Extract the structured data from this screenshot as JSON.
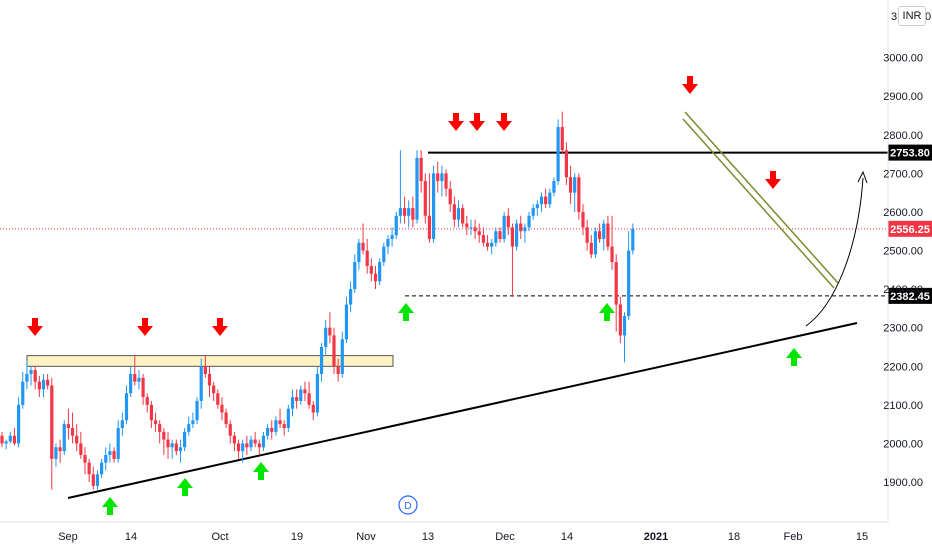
{
  "price_scale": {
    "currency": "INR",
    "top_partial_label": "3",
    "top_partial_label_right": "0"
  },
  "colors": {
    "up": "#2196f3",
    "down": "#f23645",
    "arrow_down": "#ff0000",
    "arrow_up": "#00e600",
    "zone_fill": "#fff3c4",
    "zone_border": "#555555",
    "channel": "#7d8a2e",
    "current_line": "#f23645",
    "marker": "#2962ff"
  },
  "marker_label": "D",
  "chart_data": {
    "type": "candlestick",
    "x_ticks": [
      "Sep",
      "14",
      "Oct",
      "19",
      "Nov",
      "13",
      "Dec",
      "14",
      "2021",
      "18",
      "Feb",
      "15"
    ],
    "y_ticks": [
      "1900.00",
      "2000.00",
      "2100.00",
      "2200.00",
      "2300.00",
      "2400.00",
      "2500.00",
      "2600.00",
      "2700.00",
      "2800.00",
      "2900.00",
      "3000.00"
    ],
    "ylim": [
      1800,
      3100
    ],
    "levels": [
      {
        "name": "resistance",
        "value": 2753.8,
        "label": "2753.80"
      },
      {
        "name": "support-dashed",
        "value": 2382.45,
        "label": "2382.45"
      },
      {
        "name": "current-price",
        "value": 2556.25,
        "label": "2556.25"
      }
    ],
    "zone": {
      "x_start": 0,
      "x_end": 93,
      "low": 2205,
      "high": 2225
    },
    "trendline": {
      "x1": 12,
      "y1": 1870,
      "x2": 210,
      "y2": 2310
    },
    "channel": [
      {
        "x1": 170,
        "y1": 2855,
        "x2": 207,
        "y2": 2410
      },
      {
        "x1": 170,
        "y1": 2830,
        "x2": 207,
        "y2": 2385
      }
    ],
    "down_arrows": [
      {
        "x": 5,
        "price": 2245
      },
      {
        "x": 33,
        "price": 2245
      },
      {
        "x": 52,
        "price": 2245
      },
      {
        "x": 112,
        "price": 2785
      },
      {
        "x": 117,
        "price": 2785
      },
      {
        "x": 124,
        "price": 2785
      },
      {
        "x": 170,
        "price": 2900
      },
      {
        "x": 191,
        "price": 2620
      }
    ],
    "up_arrows": [
      {
        "x": 24,
        "price": 1855
      },
      {
        "x": 43,
        "price": 1910
      },
      {
        "x": 61,
        "price": 1960
      },
      {
        "x": 98,
        "price": 2360
      },
      {
        "x": 150,
        "price": 2360
      },
      {
        "x": 197,
        "price": 2250
      }
    ],
    "candles": [
      [
        2020,
        2030,
        1990,
        2000
      ],
      [
        2000,
        2010,
        1985,
        2005
      ],
      [
        2005,
        2030,
        2000,
        2020
      ],
      [
        2020,
        2040,
        1995,
        2000
      ],
      [
        2000,
        2120,
        1990,
        2100
      ],
      [
        2100,
        2185,
        2090,
        2160
      ],
      [
        2160,
        2215,
        2140,
        2180
      ],
      [
        2180,
        2200,
        2150,
        2190
      ],
      [
        2190,
        2200,
        2140,
        2160
      ],
      [
        2160,
        2175,
        2120,
        2140
      ],
      [
        2140,
        2180,
        2120,
        2165
      ],
      [
        2165,
        2180,
        2140,
        2150
      ],
      [
        2150,
        2170,
        1880,
        1960
      ],
      [
        1960,
        2000,
        1940,
        1990
      ],
      [
        1990,
        2010,
        1950,
        1980
      ],
      [
        1980,
        2060,
        1970,
        2050
      ],
      [
        2050,
        2090,
        2010,
        2040
      ],
      [
        2040,
        2080,
        2000,
        2020
      ],
      [
        2020,
        2050,
        1980,
        2000
      ],
      [
        2000,
        2030,
        1960,
        1970
      ],
      [
        1970,
        1990,
        1920,
        1950
      ],
      [
        1950,
        1960,
        1900,
        1920
      ],
      [
        1920,
        1940,
        1880,
        1890
      ],
      [
        1890,
        1930,
        1880,
        1920
      ],
      [
        1920,
        1960,
        1910,
        1950
      ],
      [
        1950,
        1990,
        1930,
        1970
      ],
      [
        1970,
        2000,
        1950,
        1980
      ],
      [
        1980,
        1990,
        1950,
        1960
      ],
      [
        1960,
        2060,
        1950,
        2040
      ],
      [
        2040,
        2080,
        2020,
        2060
      ],
      [
        2060,
        2150,
        2050,
        2130
      ],
      [
        2130,
        2200,
        2120,
        2180
      ],
      [
        2180,
        2230,
        2150,
        2160
      ],
      [
        2160,
        2190,
        2140,
        2170
      ],
      [
        2170,
        2180,
        2100,
        2120
      ],
      [
        2120,
        2130,
        2080,
        2100
      ],
      [
        2100,
        2110,
        2040,
        2060
      ],
      [
        2060,
        2080,
        2030,
        2050
      ],
      [
        2050,
        2060,
        2000,
        2030
      ],
      [
        2030,
        2040,
        1970,
        2010
      ],
      [
        2010,
        2030,
        1960,
        1990
      ],
      [
        1990,
        2010,
        1960,
        2000
      ],
      [
        2000,
        2010,
        1970,
        1980
      ],
      [
        1980,
        2010,
        1950,
        1990
      ],
      [
        1990,
        2040,
        1980,
        2030
      ],
      [
        2030,
        2070,
        2020,
        2050
      ],
      [
        2050,
        2080,
        2040,
        2060
      ],
      [
        2060,
        2120,
        2050,
        2110
      ],
      [
        2110,
        2220,
        2090,
        2200
      ],
      [
        2200,
        2230,
        2170,
        2180
      ],
      [
        2180,
        2200,
        2120,
        2150
      ],
      [
        2150,
        2160,
        2110,
        2130
      ],
      [
        2130,
        2140,
        2090,
        2100
      ],
      [
        2100,
        2120,
        2060,
        2080
      ],
      [
        2080,
        2090,
        2040,
        2050
      ],
      [
        2050,
        2060,
        2000,
        2020
      ],
      [
        2020,
        2030,
        1980,
        2000
      ],
      [
        2000,
        2010,
        1960,
        1980
      ],
      [
        1980,
        2010,
        1950,
        2000
      ],
      [
        2000,
        2020,
        1970,
        1990
      ],
      [
        1990,
        2020,
        1980,
        2010
      ],
      [
        2010,
        2030,
        1990,
        2000
      ],
      [
        2000,
        2010,
        1970,
        1990
      ],
      [
        1990,
        2030,
        1980,
        2020
      ],
      [
        2020,
        2050,
        2010,
        2040
      ],
      [
        2040,
        2060,
        2010,
        2030
      ],
      [
        2030,
        2070,
        2020,
        2060
      ],
      [
        2060,
        2090,
        2040,
        2050
      ],
      [
        2050,
        2060,
        2020,
        2040
      ],
      [
        2040,
        2100,
        2030,
        2090
      ],
      [
        2090,
        2140,
        2070,
        2120
      ],
      [
        2120,
        2140,
        2090,
        2110
      ],
      [
        2110,
        2150,
        2100,
        2140
      ],
      [
        2140,
        2160,
        2110,
        2130
      ],
      [
        2130,
        2160,
        2090,
        2100
      ],
      [
        2100,
        2110,
        2060,
        2080
      ],
      [
        2080,
        2200,
        2070,
        2180
      ],
      [
        2180,
        2260,
        2160,
        2250
      ],
      [
        2250,
        2320,
        2230,
        2300
      ],
      [
        2300,
        2340,
        2260,
        2280
      ],
      [
        2280,
        2300,
        2180,
        2200
      ],
      [
        2200,
        2220,
        2160,
        2180
      ],
      [
        2180,
        2290,
        2170,
        2270
      ],
      [
        2270,
        2380,
        2260,
        2360
      ],
      [
        2360,
        2420,
        2340,
        2400
      ],
      [
        2400,
        2490,
        2390,
        2470
      ],
      [
        2470,
        2530,
        2450,
        2520
      ],
      [
        2520,
        2570,
        2490,
        2500
      ],
      [
        2500,
        2530,
        2440,
        2460
      ],
      [
        2460,
        2480,
        2420,
        2440
      ],
      [
        2440,
        2460,
        2400,
        2420
      ],
      [
        2420,
        2480,
        2410,
        2470
      ],
      [
        2470,
        2520,
        2460,
        2510
      ],
      [
        2510,
        2540,
        2490,
        2530
      ],
      [
        2530,
        2560,
        2510,
        2540
      ],
      [
        2540,
        2600,
        2530,
        2590
      ],
      [
        2590,
        2760,
        2570,
        2610
      ],
      [
        2610,
        2640,
        2570,
        2590
      ],
      [
        2590,
        2630,
        2560,
        2610
      ],
      [
        2610,
        2640,
        2560,
        2580
      ],
      [
        2580,
        2760,
        2570,
        2740
      ],
      [
        2740,
        2760,
        2650,
        2680
      ],
      [
        2680,
        2700,
        2570,
        2590
      ],
      [
        2590,
        2700,
        2520,
        2530
      ],
      [
        2530,
        2720,
        2520,
        2700
      ],
      [
        2700,
        2730,
        2650,
        2680
      ],
      [
        2680,
        2720,
        2640,
        2700
      ],
      [
        2700,
        2710,
        2640,
        2660
      ],
      [
        2660,
        2680,
        2600,
        2620
      ],
      [
        2620,
        2640,
        2560,
        2580
      ],
      [
        2580,
        2630,
        2560,
        2610
      ],
      [
        2610,
        2620,
        2560,
        2570
      ],
      [
        2570,
        2590,
        2540,
        2560
      ],
      [
        2560,
        2580,
        2540,
        2560
      ],
      [
        2560,
        2580,
        2530,
        2550
      ],
      [
        2550,
        2570,
        2520,
        2540
      ],
      [
        2540,
        2560,
        2510,
        2520
      ],
      [
        2520,
        2540,
        2500,
        2510
      ],
      [
        2510,
        2530,
        2490,
        2520
      ],
      [
        2520,
        2560,
        2510,
        2550
      ],
      [
        2550,
        2560,
        2520,
        2530
      ],
      [
        2530,
        2600,
        2520,
        2590
      ],
      [
        2590,
        2610,
        2540,
        2560
      ],
      [
        2560,
        2570,
        2380,
        2510
      ],
      [
        2510,
        2580,
        2500,
        2570
      ],
      [
        2570,
        2590,
        2530,
        2550
      ],
      [
        2550,
        2570,
        2520,
        2560
      ],
      [
        2560,
        2600,
        2550,
        2590
      ],
      [
        2590,
        2620,
        2580,
        2610
      ],
      [
        2610,
        2630,
        2590,
        2620
      ],
      [
        2620,
        2650,
        2600,
        2640
      ],
      [
        2640,
        2660,
        2610,
        2620
      ],
      [
        2620,
        2660,
        2610,
        2650
      ],
      [
        2650,
        2690,
        2640,
        2680
      ],
      [
        2680,
        2840,
        2670,
        2820
      ],
      [
        2820,
        2860,
        2750,
        2760
      ],
      [
        2760,
        2780,
        2670,
        2690
      ],
      [
        2690,
        2720,
        2620,
        2650
      ],
      [
        2650,
        2700,
        2600,
        2690
      ],
      [
        2690,
        2700,
        2580,
        2600
      ],
      [
        2600,
        2620,
        2540,
        2560
      ],
      [
        2560,
        2580,
        2500,
        2520
      ],
      [
        2520,
        2540,
        2480,
        2490
      ],
      [
        2490,
        2560,
        2480,
        2550
      ],
      [
        2550,
        2570,
        2520,
        2530
      ],
      [
        2530,
        2580,
        2500,
        2570
      ],
      [
        2570,
        2590,
        2500,
        2510
      ],
      [
        2510,
        2590,
        2450,
        2470
      ],
      [
        2470,
        2490,
        2290,
        2360
      ],
      [
        2360,
        2380,
        2260,
        2280
      ],
      [
        2280,
        2340,
        2210,
        2330
      ],
      [
        2330,
        2550,
        2320,
        2500
      ],
      [
        2500,
        2570,
        2490,
        2556
      ]
    ]
  }
}
